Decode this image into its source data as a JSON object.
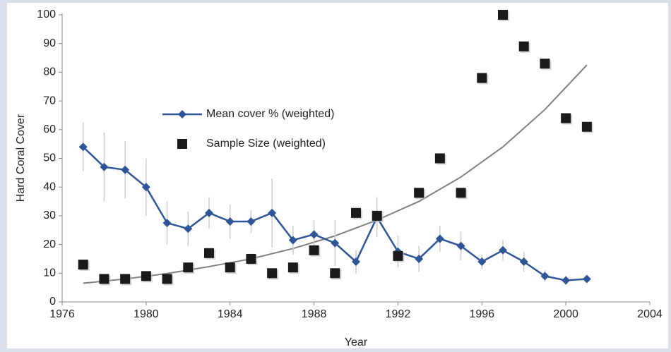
{
  "chart_data": {
    "type": "line_scatter",
    "x_label": "Year",
    "y_label": "Hard Coral Cover",
    "x": [
      1977,
      1978,
      1979,
      1980,
      1981,
      1982,
      1983,
      1984,
      1985,
      1986,
      1987,
      1988,
      1989,
      1990,
      1991,
      1992,
      1993,
      1994,
      1995,
      1996,
      1997,
      1998,
      1999,
      2000,
      2001
    ],
    "series": [
      {
        "name": "Mean cover % (weighted)",
        "color": "#2e5597",
        "style": "line",
        "values": [
          54,
          47,
          46,
          40,
          27.5,
          25.5,
          31,
          28,
          28,
          31,
          21.5,
          23.5,
          20.5,
          14,
          29.5,
          17.5,
          15,
          22,
          19.5,
          14,
          18,
          14,
          9,
          7.5,
          8
        ],
        "error": [
          8.5,
          12,
          10,
          10,
          7.5,
          6,
          5.5,
          6,
          4,
          12,
          5,
          5,
          8,
          4,
          7,
          5.5,
          4.5,
          4.5,
          5,
          2.5,
          3.5,
          3.5,
          2,
          1.5,
          1
        ],
        "error_color": "#cccccc"
      },
      {
        "name": "Sample Size (weighted)",
        "color": "#1a1a1a",
        "style": "scatter",
        "values": [
          13,
          8,
          8,
          9,
          8,
          12,
          17,
          12,
          15,
          10,
          12,
          18,
          10,
          31,
          30,
          16,
          38,
          50,
          38,
          78,
          100,
          89,
          83,
          64,
          61
        ]
      }
    ],
    "trendline": {
      "color": "#808080",
      "x": [
        1977,
        1979,
        1981,
        1983,
        1985,
        1987,
        1989,
        1991,
        1993,
        1995,
        1997,
        1999,
        2001
      ],
      "values": [
        6.5,
        8,
        9.9,
        12.3,
        15,
        18.6,
        23,
        28.5,
        35,
        43.5,
        54,
        67,
        82.5
      ]
    },
    "xlim": [
      1976,
      2004
    ],
    "xticks": [
      1976,
      1980,
      1984,
      1988,
      1992,
      1996,
      2000,
      2004
    ],
    "ylim": [
      0,
      100
    ],
    "yticks": [
      0,
      10,
      20,
      30,
      40,
      50,
      60,
      70,
      80,
      90,
      100
    ],
    "grid": false
  }
}
